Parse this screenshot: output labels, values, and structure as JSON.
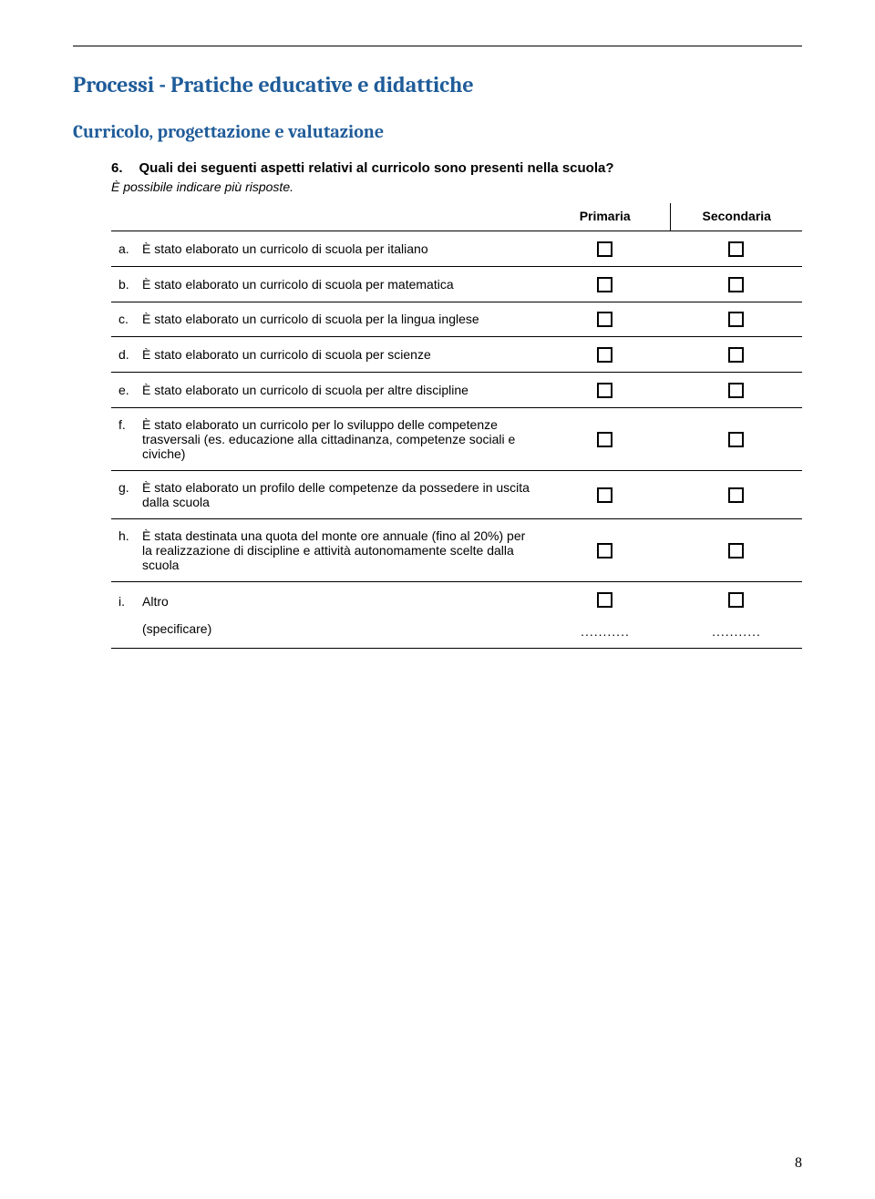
{
  "heading1": "Processi - Pratiche educative e didattiche",
  "heading2": "Curricolo, progettazione e valutazione",
  "question": {
    "number": "6.",
    "text": "Quali dei seguenti aspetti relativi al curricolo sono presenti nella scuola?",
    "note": "È possibile indicare più risposte."
  },
  "columns": {
    "col1": "Primaria",
    "col2": "Secondaria"
  },
  "items": [
    {
      "letter": "a.",
      "text": "È stato elaborato un curricolo di scuola per italiano"
    },
    {
      "letter": "b.",
      "text": "È stato elaborato un curricolo di scuola per matematica"
    },
    {
      "letter": "c.",
      "text": "È stato elaborato un curricolo di scuola per la lingua inglese"
    },
    {
      "letter": "d.",
      "text": "È stato elaborato un curricolo di scuola per scienze"
    },
    {
      "letter": "e.",
      "text": "È stato elaborato un curricolo di scuola per altre discipline"
    },
    {
      "letter": "f.",
      "text": "È stato elaborato un curricolo per lo sviluppo delle competenze trasversali (es. educazione alla cittadinanza, competenze sociali e civiche)"
    },
    {
      "letter": "g.",
      "text": "È stato elaborato un profilo delle competenze da possedere in uscita dalla scuola"
    },
    {
      "letter": "h.",
      "text": "È stata destinata una quota del monte ore annuale (fino al 20%) per la realizzazione di discipline e attività autonomamente scelte dalla scuola"
    }
  ],
  "altro": {
    "letter": "i.",
    "label": "Altro",
    "specify": "(specificare)",
    "dots": "..........."
  },
  "pageNumber": "8"
}
